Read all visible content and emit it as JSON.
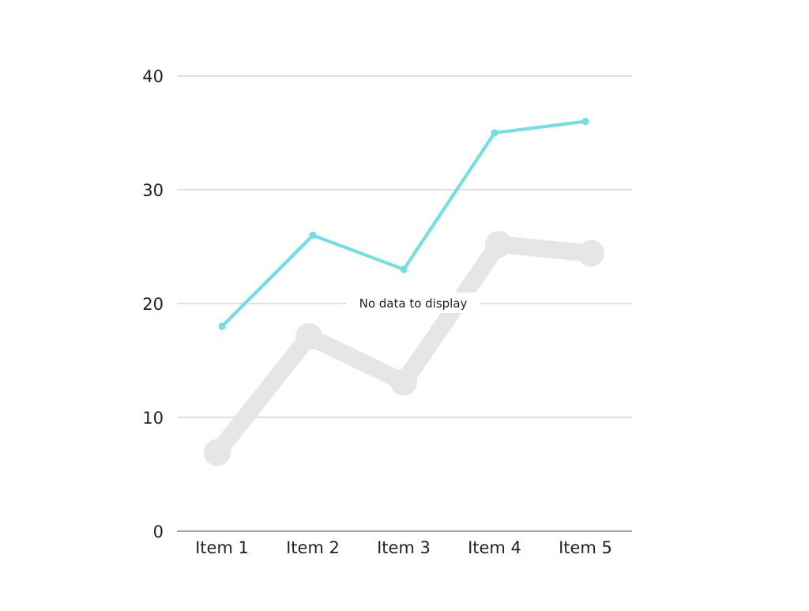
{
  "chart_data": {
    "type": "line",
    "categories": [
      "Item 1",
      "Item 2",
      "Item 3",
      "Item 4",
      "Item 5"
    ],
    "ylim": [
      0,
      40
    ],
    "yticks": [
      0,
      10,
      20,
      30,
      40
    ],
    "grid": true,
    "series": [
      {
        "values": [
          18,
          26,
          23,
          35,
          36
        ],
        "color": "#6edfe2"
      },
      {
        "values": [
          6.9,
          17.1,
          13.1,
          25.2,
          24.4
        ],
        "color": "#e6e6e6"
      }
    ],
    "overlay_message": "No data to display"
  }
}
